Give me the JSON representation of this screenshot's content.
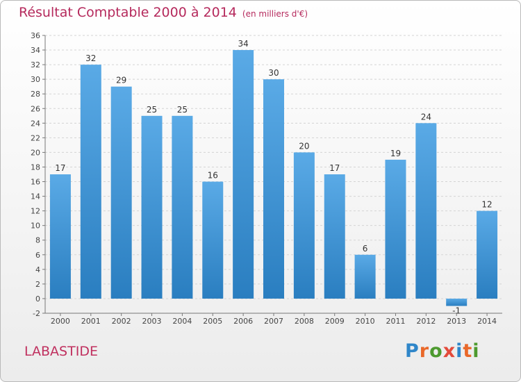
{
  "title": {
    "main": "Résultat Comptable 2000 à 2014",
    "sub": "(en milliers d'€)"
  },
  "commune": "LABASTIDE",
  "logo": {
    "text": "Proxiti",
    "letter_colors": [
      "#2f86c9",
      "#e9682a",
      "#4d9a2f",
      "#e34a3a",
      "#2f86c9",
      "#e9682a",
      "#4d9a2f"
    ]
  },
  "colors": {
    "bar_top": "#5aaae6",
    "bar_bottom": "#2a7ec0",
    "title": "#b5295c",
    "grid": "#d4d4d4"
  },
  "chart_data": {
    "type": "bar",
    "title": "Résultat Comptable 2000 à 2014",
    "subtitle": "(en milliers d'€)",
    "categories": [
      "2000",
      "2001",
      "2002",
      "2003",
      "2004",
      "2005",
      "2006",
      "2007",
      "2008",
      "2009",
      "2010",
      "2011",
      "2012",
      "2013",
      "2014"
    ],
    "values": [
      17,
      32,
      29,
      25,
      25,
      16,
      34,
      30,
      20,
      17,
      6,
      19,
      24,
      -1,
      12
    ],
    "ylim": [
      -2,
      36
    ],
    "yticks": [
      -2,
      0,
      2,
      4,
      6,
      8,
      10,
      12,
      14,
      16,
      18,
      20,
      22,
      24,
      26,
      28,
      30,
      32,
      34,
      36
    ],
    "grid": true,
    "xlabel": "",
    "ylabel": ""
  }
}
